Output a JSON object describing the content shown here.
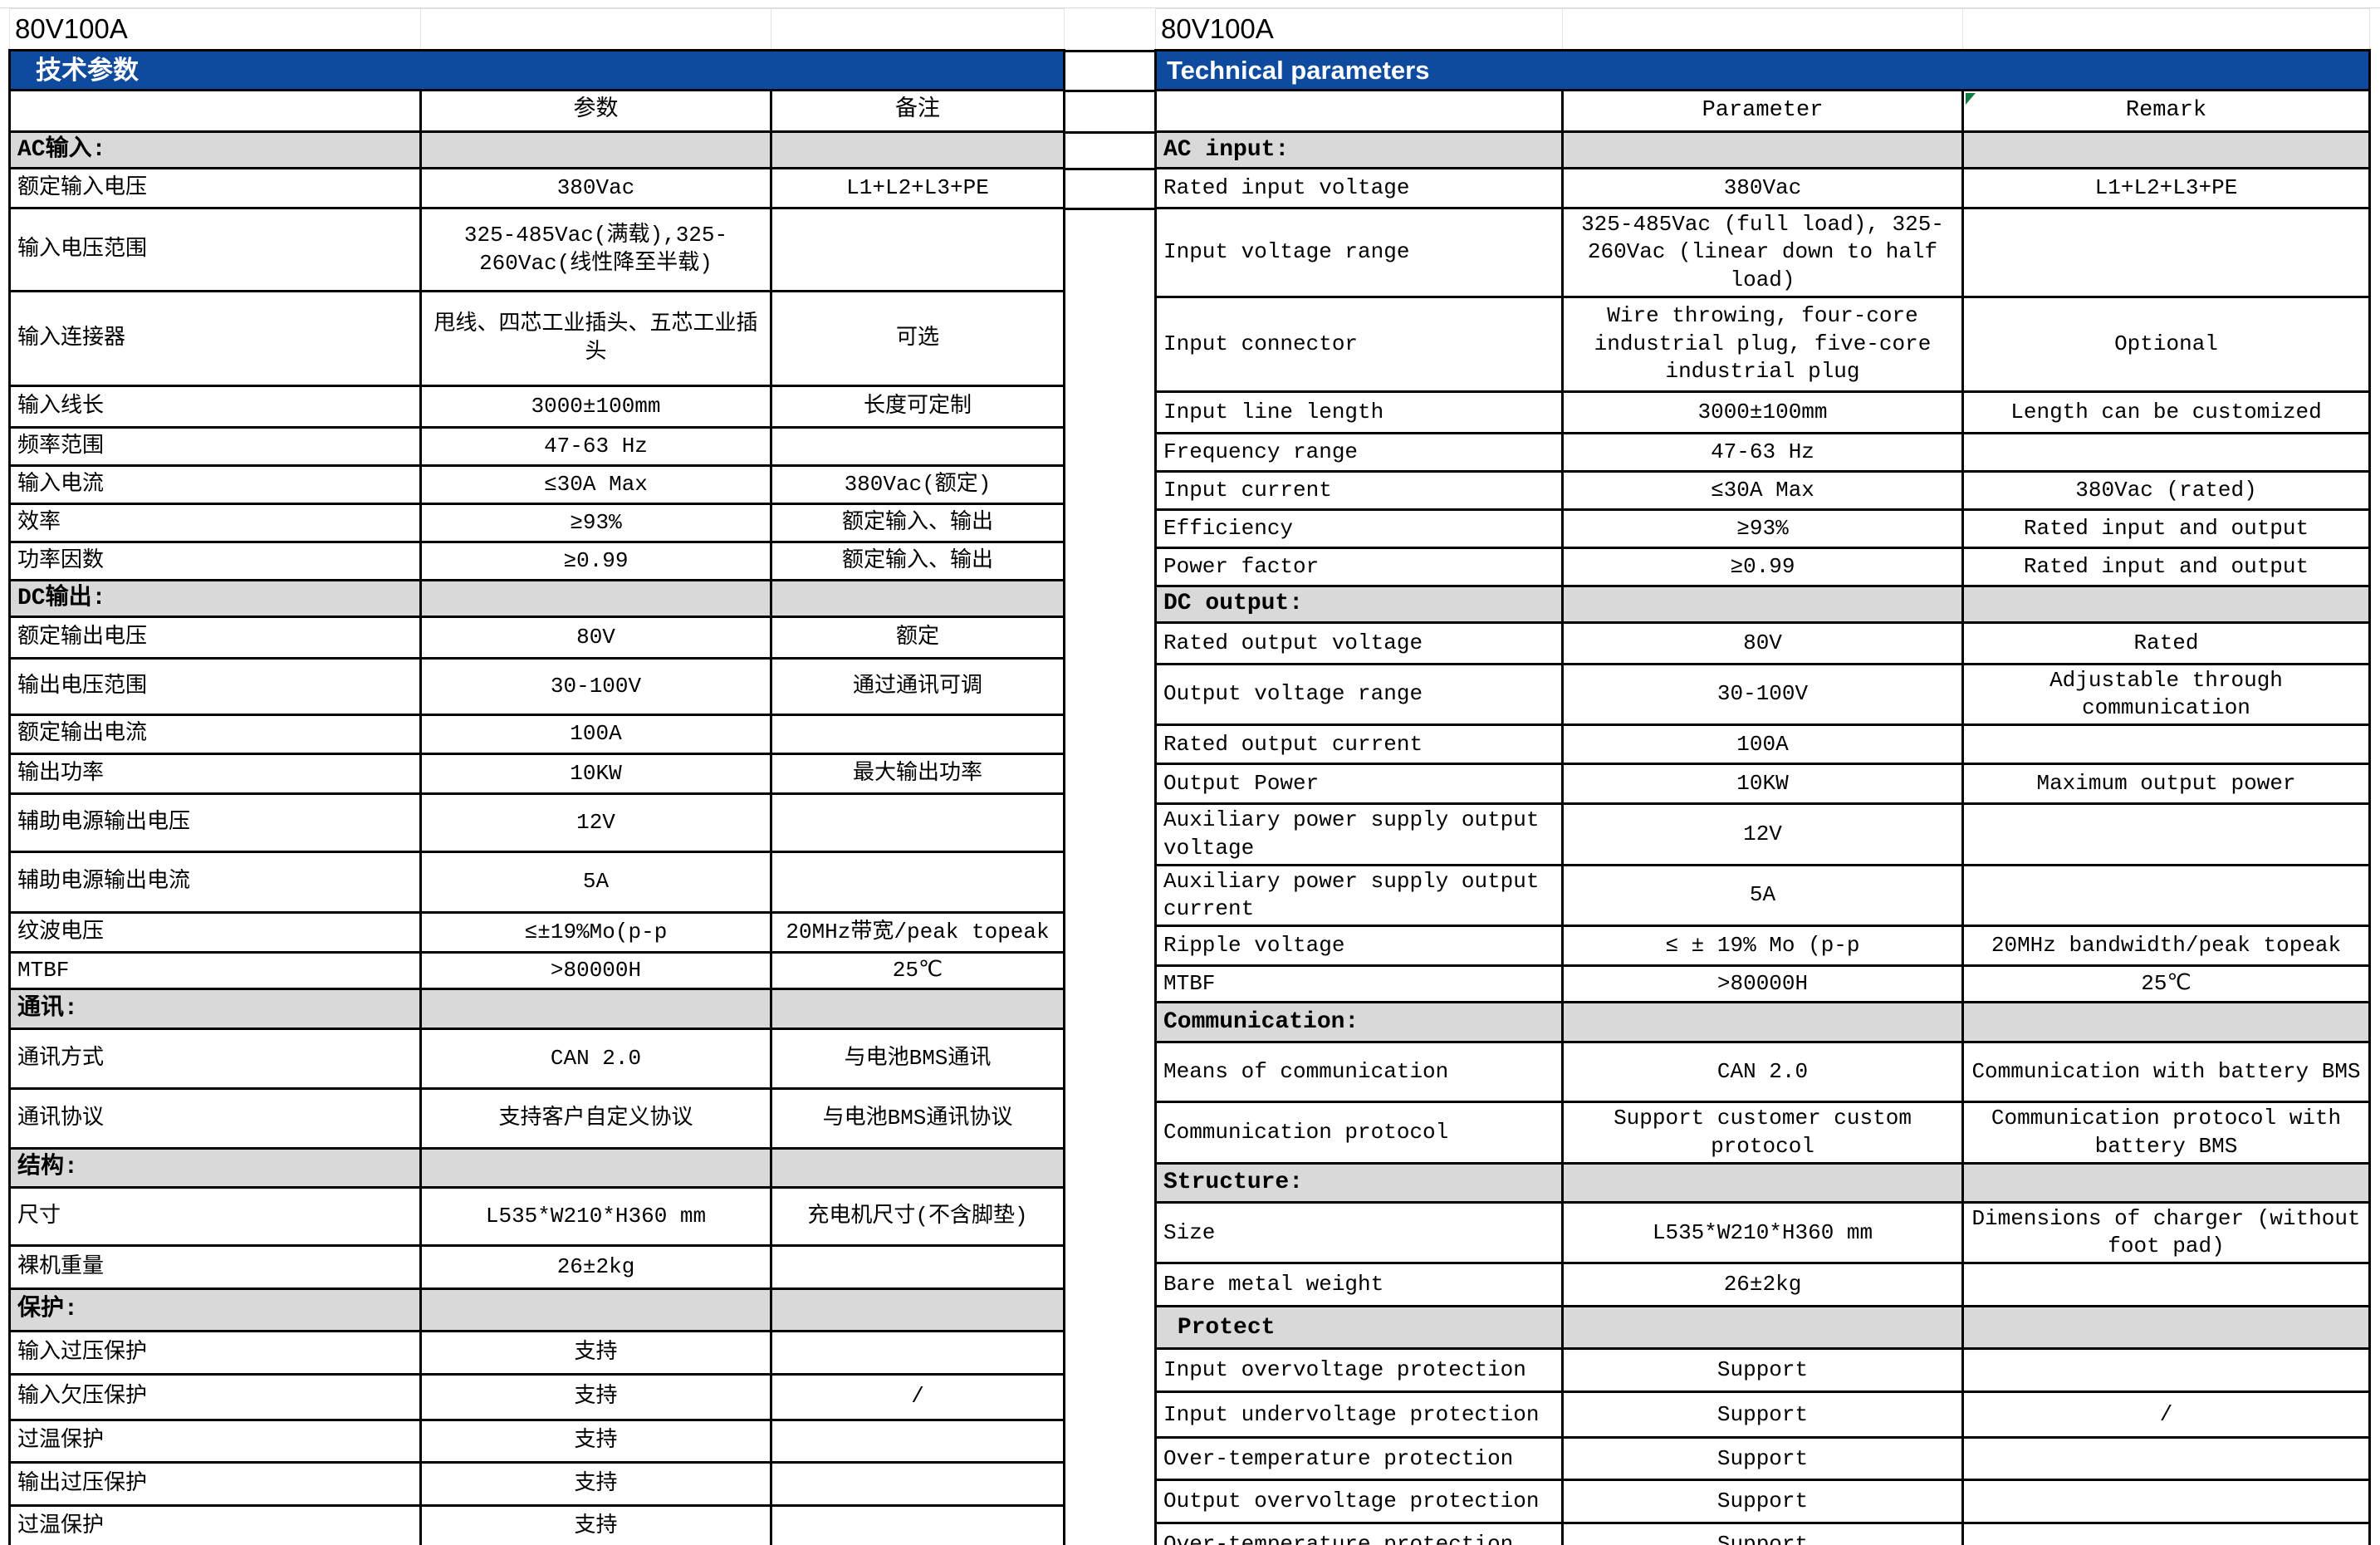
{
  "colors": {
    "banner_blue": "#0e4a9e",
    "section_gray": "#d9d9d9",
    "border_black": "#000000",
    "comment_marker_green": "#107c41"
  },
  "left_table": {
    "title": "80V100A",
    "banner": "技术参数",
    "columns": [
      "",
      "参数",
      "备注"
    ],
    "rows": [
      {
        "t": "section",
        "c": [
          "AC输入:",
          "",
          ""
        ]
      },
      {
        "t": "data",
        "c": [
          "额定输入电压",
          "380Vac",
          "L1+L2+L3+PE"
        ]
      },
      {
        "t": "data",
        "c": [
          "输入电压范围",
          "325-485Vac(满载),325-260Vac(线性降至半载)",
          ""
        ]
      },
      {
        "t": "data",
        "c": [
          "输入连接器",
          "甩线、四芯工业插头、五芯工业插头",
          "可选"
        ]
      },
      {
        "t": "data",
        "c": [
          "输入线长",
          "3000±100mm",
          "长度可定制"
        ]
      },
      {
        "t": "data",
        "c": [
          "频率范围",
          "47-63 Hz",
          ""
        ]
      },
      {
        "t": "data",
        "c": [
          "输入电流",
          "≤30A Max",
          "380Vac(额定)"
        ]
      },
      {
        "t": "data",
        "c": [
          "效率",
          "≥93%",
          "额定输入、输出"
        ]
      },
      {
        "t": "data",
        "c": [
          "功率因数",
          "≥0.99",
          "额定输入、输出"
        ]
      },
      {
        "t": "section",
        "c": [
          "DC输出:",
          "",
          ""
        ]
      },
      {
        "t": "data",
        "c": [
          "额定输出电压",
          "80V",
          "额定"
        ]
      },
      {
        "t": "data",
        "c": [
          "输出电压范围",
          "30-100V",
          "通过通讯可调"
        ]
      },
      {
        "t": "data",
        "c": [
          "额定输出电流",
          "100A",
          ""
        ]
      },
      {
        "t": "data",
        "c": [
          "输出功率",
          "10KW",
          "最大输出功率"
        ]
      },
      {
        "t": "data",
        "c": [
          "辅助电源输出电压",
          "12V",
          ""
        ]
      },
      {
        "t": "data",
        "c": [
          "辅助电源输出电流",
          "5A",
          ""
        ]
      },
      {
        "t": "data",
        "c": [
          "纹波电压",
          "≤±19%Mo(p-p",
          "20MHz带宽/peak topeak"
        ]
      },
      {
        "t": "data",
        "c": [
          "MTBF",
          ">80000H",
          "25℃"
        ]
      },
      {
        "t": "section",
        "c": [
          "通讯:",
          "",
          ""
        ]
      },
      {
        "t": "data",
        "c": [
          "通讯方式",
          "CAN 2.0",
          "与电池BMS通讯"
        ]
      },
      {
        "t": "data",
        "c": [
          "通讯协议",
          "支持客户自定义协议",
          "与电池BMS通讯协议"
        ]
      },
      {
        "t": "section",
        "c": [
          "结构:",
          "",
          ""
        ]
      },
      {
        "t": "data",
        "c": [
          "尺寸",
          "L535*W210*H360 mm",
          "充电机尺寸(不含脚垫)"
        ]
      },
      {
        "t": "data",
        "c": [
          "裸机重量",
          "26±2kg",
          ""
        ]
      },
      {
        "t": "section",
        "c": [
          "保护:",
          "",
          ""
        ]
      },
      {
        "t": "data",
        "c": [
          "输入过压保护",
          "支持",
          ""
        ]
      },
      {
        "t": "data",
        "c": [
          "输入欠压保护",
          "支持",
          "/"
        ]
      },
      {
        "t": "data",
        "c": [
          "过温保护",
          "支持",
          ""
        ]
      },
      {
        "t": "data",
        "c": [
          "输出过压保护",
          "支持",
          ""
        ]
      },
      {
        "t": "data",
        "c": [
          "过温保护",
          "支持",
          ""
        ]
      }
    ]
  },
  "right_table": {
    "title": "80V100A",
    "banner": "Technical parameters",
    "columns": [
      "",
      "Parameter",
      "Remark"
    ],
    "rows": [
      {
        "t": "section",
        "c": [
          "AC input:",
          "",
          ""
        ]
      },
      {
        "t": "data",
        "c": [
          "Rated input voltage",
          "380Vac",
          "L1+L2+L3+PE"
        ]
      },
      {
        "t": "data",
        "c": [
          "Input voltage range",
          "325-485Vac (full load), 325-260Vac (linear down to half load)",
          ""
        ]
      },
      {
        "t": "data",
        "c": [
          "Input connector",
          "Wire throwing, four-core industrial plug, five-core industrial plug",
          "Optional"
        ]
      },
      {
        "t": "data",
        "c": [
          "Input line length",
          "3000±100mm",
          "Length can be customized"
        ]
      },
      {
        "t": "data",
        "c": [
          "Frequency range",
          "47-63 Hz",
          ""
        ]
      },
      {
        "t": "data",
        "c": [
          "Input current",
          "≤30A Max",
          "380Vac (rated)"
        ]
      },
      {
        "t": "data",
        "c": [
          "Efficiency",
          "≥93%",
          "Rated input and output"
        ]
      },
      {
        "t": "data",
        "c": [
          "Power factor",
          "≥0.99",
          "Rated input and output"
        ]
      },
      {
        "t": "section",
        "c": [
          "DC output:",
          "",
          ""
        ]
      },
      {
        "t": "data",
        "c": [
          "Rated output voltage",
          "80V",
          "Rated"
        ]
      },
      {
        "t": "data",
        "c": [
          "Output voltage range",
          "30-100V",
          "Adjustable through communication"
        ]
      },
      {
        "t": "data",
        "c": [
          "Rated output current",
          "100A",
          ""
        ]
      },
      {
        "t": "data",
        "c": [
          "Output Power",
          "10KW",
          "Maximum output power"
        ]
      },
      {
        "t": "data",
        "c": [
          "Auxiliary power supply output voltage",
          "12V",
          ""
        ]
      },
      {
        "t": "data",
        "c": [
          "Auxiliary power supply output current",
          "5A",
          ""
        ]
      },
      {
        "t": "data",
        "c": [
          "Ripple voltage",
          "≤ ± 19% Mo (p-p",
          "20MHz bandwidth/peak topeak"
        ]
      },
      {
        "t": "data",
        "c": [
          "MTBF",
          ">80000H",
          "25℃"
        ]
      },
      {
        "t": "section",
        "c": [
          "Communication:",
          "",
          ""
        ]
      },
      {
        "t": "data",
        "c": [
          "Means of communication",
          "CAN 2.0",
          "Communication with battery BMS"
        ]
      },
      {
        "t": "data",
        "c": [
          "Communication protocol",
          "Support customer custom protocol",
          "Communication protocol with battery BMS"
        ]
      },
      {
        "t": "section",
        "c": [
          "Structure:",
          "",
          ""
        ]
      },
      {
        "t": "data",
        "c": [
          "Size",
          "L535*W210*H360 mm",
          "Dimensions of charger (without foot pad)"
        ]
      },
      {
        "t": "data",
        "c": [
          "Bare metal weight",
          "26±2kg",
          ""
        ]
      },
      {
        "t": "section",
        "c": [
          " Protect",
          "",
          ""
        ]
      },
      {
        "t": "data",
        "c": [
          "Input overvoltage protection",
          "Support",
          ""
        ]
      },
      {
        "t": "data",
        "c": [
          "Input undervoltage protection",
          "Support",
          "/"
        ]
      },
      {
        "t": "data",
        "c": [
          "Over-temperature protection",
          "Support",
          ""
        ]
      },
      {
        "t": "data",
        "c": [
          "Output overvoltage protection",
          "Support",
          ""
        ]
      },
      {
        "t": "data",
        "c": [
          "Over-temperature protection",
          "Support",
          ""
        ]
      }
    ]
  }
}
